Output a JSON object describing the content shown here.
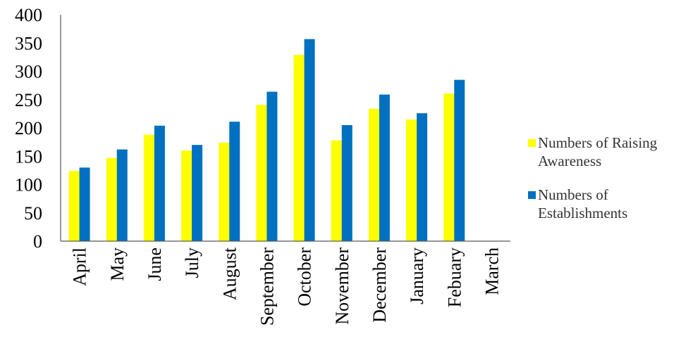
{
  "chart_data": {
    "type": "bar",
    "title": "",
    "xlabel": "",
    "ylabel": "",
    "ylim": [
      0,
      400
    ],
    "yticks": [
      0,
      50,
      100,
      150,
      200,
      250,
      300,
      350,
      400
    ],
    "grid": false,
    "legend_position": "right",
    "categories": [
      "April",
      "May",
      "June",
      "July",
      "August",
      "September",
      "October",
      "November",
      "December",
      "January",
      "Febuary",
      "March"
    ],
    "series": [
      {
        "name": "Numbers of Raising Awareness",
        "color": "#FFFF00",
        "values": [
          124,
          147,
          188,
          160,
          174,
          241,
          329,
          178,
          234,
          215,
          261,
          0
        ]
      },
      {
        "name": "Numbers of Establishments",
        "color": "#0070C0",
        "values": [
          130,
          162,
          204,
          170,
          211,
          264,
          357,
          205,
          259,
          226,
          285,
          0
        ]
      }
    ]
  }
}
